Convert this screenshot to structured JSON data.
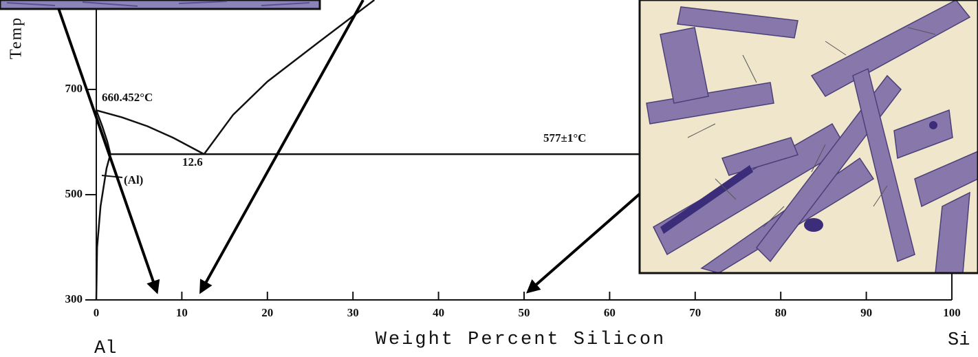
{
  "chart_data": {
    "type": "line",
    "xlabel": "Weight Percent Silicon",
    "ylabel": "Temp",
    "xlim": [
      0,
      100
    ],
    "ylim": [
      300,
      870
    ],
    "xticks": [
      0,
      10,
      20,
      30,
      40,
      50,
      60,
      70,
      80,
      90,
      100
    ],
    "yticks": [
      300,
      500,
      700
    ],
    "series": [
      {
        "color": "#111111",
        "x": [
          0,
          3,
          6,
          9,
          12.6
        ],
        "values": [
          660.452,
          647,
          630,
          608,
          577
        ]
      },
      {
        "color": "#111111",
        "x": [
          12.6,
          16,
          20,
          26,
          32.5
        ],
        "values": [
          577,
          652,
          715,
          790,
          870
        ]
      },
      {
        "color": "#111111",
        "x": [
          1.65,
          100
        ],
        "values": [
          577,
          577
        ]
      },
      {
        "color": "#111111",
        "x": [
          0,
          0.7,
          1.3,
          1.65
        ],
        "values": [
          660.452,
          630,
          600,
          577
        ]
      },
      {
        "color": "#111111",
        "x": [
          1.65,
          1.2,
          0.5,
          0.1,
          0
        ],
        "values": [
          577,
          550,
          478,
          400,
          300
        ]
      }
    ],
    "annotations": [
      "660.452°C",
      "12.6",
      "577±1°C",
      "(Al)",
      "Al",
      "Si"
    ]
  }
}
